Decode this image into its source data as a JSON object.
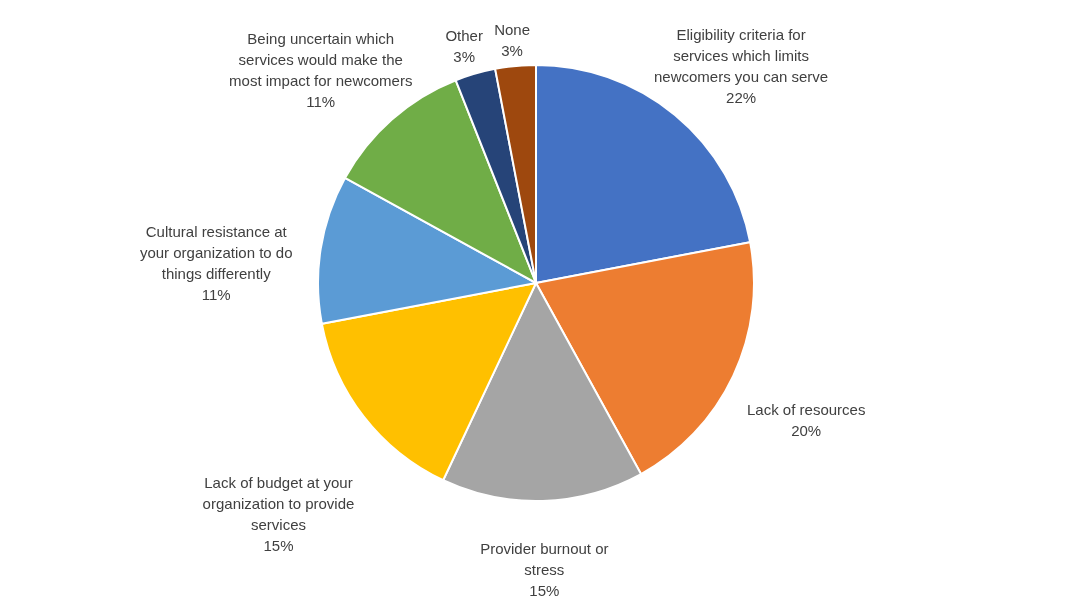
{
  "chart_data": {
    "type": "pie",
    "categories": [
      "Eligibility criteria for services which limits newcomers you can serve",
      "Lack of resources",
      "Provider burnout or stress",
      "Lack of budget at your organization to provide services",
      "Cultural resistance at your organization to do things differently",
      "Being uncertain which services would make the most impact for newcomers",
      "Other",
      "None"
    ],
    "values": [
      22,
      20,
      15,
      15,
      11,
      11,
      3,
      3
    ],
    "value_labels": [
      "22%",
      "20%",
      "15%",
      "15%",
      "11%",
      "11%",
      "3%",
      "3%"
    ],
    "colors": [
      "#4472c4",
      "#ed7d31",
      "#a5a5a5",
      "#ffc000",
      "#5b9bd5",
      "#70ad47",
      "#264478",
      "#9e480e"
    ]
  }
}
